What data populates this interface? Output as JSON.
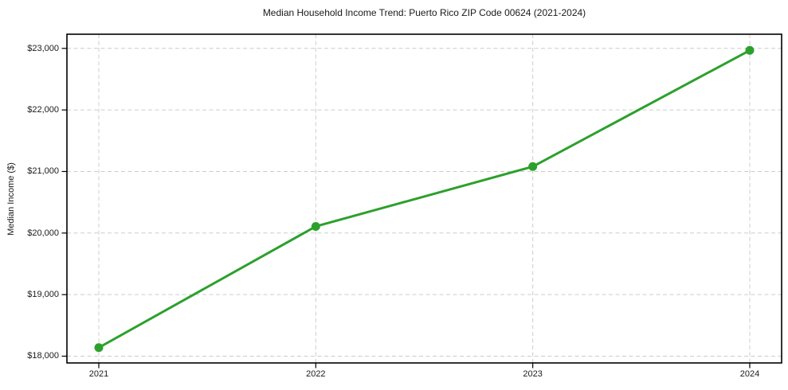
{
  "chart_data": {
    "type": "line",
    "title": "Median Household Income Trend: Puerto Rico ZIP Code 00624 (2021-2024)",
    "xlabel": "",
    "ylabel": "Median Income ($)",
    "categories": [
      "2021",
      "2022",
      "2023",
      "2024"
    ],
    "series": [
      {
        "name": "Median Household Income",
        "values": [
          18139,
          20108,
          21080,
          22968
        ]
      }
    ],
    "yticks": [
      18000,
      19000,
      20000,
      21000,
      22000,
      23000
    ],
    "ytick_labels": [
      "$18,000",
      "$19,000",
      "$20,000",
      "$21,000",
      "$22,000",
      "$23,000"
    ],
    "ylim": [
      17890,
      23230
    ],
    "grid": true,
    "grid_style": "dashed",
    "legend": "none",
    "line_color": "#2ca02c",
    "grid_color": "#cccccc",
    "axis_color": "#000000",
    "marker": "circle"
  }
}
